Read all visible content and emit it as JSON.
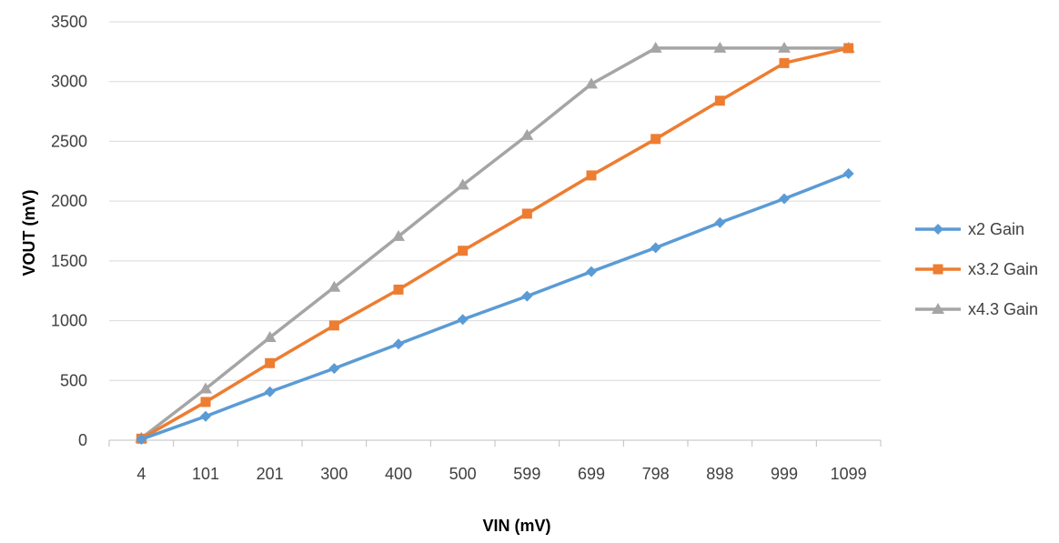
{
  "chart_data": {
    "type": "line",
    "xlabel": "VIN (mV)",
    "ylabel": "VOUT (mV)",
    "categories": [
      "4",
      "101",
      "201",
      "300",
      "400",
      "500",
      "599",
      "699",
      "798",
      "898",
      "999",
      "1099"
    ],
    "ylim": [
      0,
      3500
    ],
    "yticks": [
      0,
      500,
      1000,
      1500,
      2000,
      2500,
      3000,
      3500
    ],
    "grid": true,
    "legend_position": "right",
    "series": [
      {
        "name": "x2 Gain",
        "color": "#5B9BD5",
        "marker": "diamond",
        "values": [
          8,
          200,
          405,
          600,
          805,
          1010,
          1205,
          1410,
          1610,
          1820,
          2020,
          2230
        ]
      },
      {
        "name": "x3.2 Gain",
        "color": "#ED7D31",
        "marker": "square",
        "values": [
          13,
          320,
          645,
          960,
          1260,
          1585,
          1895,
          2215,
          2520,
          2840,
          3155,
          3280
        ]
      },
      {
        "name": "x4.3 Gain",
        "color": "#A5A5A5",
        "marker": "triangle",
        "values": [
          17,
          430,
          860,
          1280,
          1705,
          2135,
          2550,
          2980,
          3280,
          3280,
          3280,
          3280
        ]
      }
    ]
  }
}
